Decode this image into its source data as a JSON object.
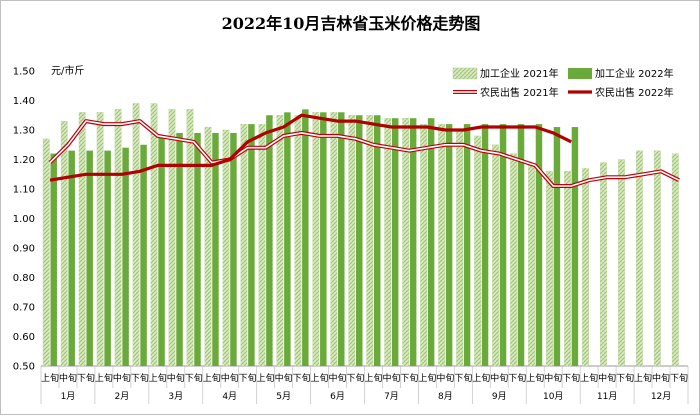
{
  "chart_data": {
    "type": "bar+line",
    "title": "2022年10月吉林省玉米价格走势图",
    "ylabel": "元/市斤",
    "ylim": [
      0.5,
      1.5
    ],
    "ytick_step": 0.1,
    "yticks": [
      "0.50",
      "0.60",
      "0.70",
      "0.80",
      "0.90",
      "1.00",
      "1.10",
      "1.20",
      "1.30",
      "1.40",
      "1.50"
    ],
    "grid": false,
    "legend_position": "top-right",
    "categories": [
      "上旬",
      "中旬",
      "下旬",
      "上旬",
      "中旬",
      "下旬",
      "上旬",
      "中旬",
      "下旬",
      "上旬",
      "中旬",
      "下旬",
      "上旬",
      "中旬",
      "下旬",
      "上旬",
      "中旬",
      "下旬",
      "上旬",
      "中旬",
      "下旬",
      "上旬",
      "中旬",
      "下旬",
      "上旬",
      "中旬",
      "下旬",
      "上旬",
      "中旬",
      "下旬",
      "上旬",
      "中旬",
      "下旬",
      "上旬",
      "中旬",
      "下旬"
    ],
    "months": [
      "1月",
      "2月",
      "3月",
      "4月",
      "5月",
      "6月",
      "7月",
      "8月",
      "9月",
      "10月",
      "11月",
      "12月"
    ],
    "series": [
      {
        "name": "加工企业 2021年",
        "kind": "bar",
        "color": "#9bc46a",
        "pattern": "hatched",
        "values": [
          1.27,
          1.33,
          1.36,
          1.36,
          1.37,
          1.39,
          1.39,
          1.37,
          1.37,
          1.31,
          1.3,
          1.32,
          1.32,
          1.35,
          1.35,
          1.36,
          1.36,
          1.35,
          1.35,
          1.34,
          1.34,
          1.32,
          1.32,
          1.3,
          1.28,
          1.25,
          1.22,
          1.18,
          1.16,
          1.16,
          1.17,
          1.19,
          1.2,
          1.23,
          1.23,
          1.22
        ]
      },
      {
        "name": "加工企业 2022年",
        "kind": "bar",
        "color": "#6aaa3a",
        "pattern": "solid",
        "values": [
          1.22,
          1.23,
          1.23,
          1.23,
          1.24,
          1.25,
          1.28,
          1.29,
          1.29,
          1.29,
          1.29,
          1.32,
          1.35,
          1.36,
          1.37,
          1.36,
          1.36,
          1.35,
          1.35,
          1.34,
          1.34,
          1.34,
          1.32,
          1.32,
          1.32,
          1.32,
          1.32,
          1.32,
          1.31,
          1.31,
          null,
          null,
          null,
          null,
          null,
          null
        ]
      },
      {
        "name": "农民出售 2021年",
        "kind": "line",
        "color": "#c0000c",
        "style": "double",
        "values": [
          1.19,
          1.25,
          1.33,
          1.32,
          1.32,
          1.33,
          1.28,
          1.27,
          1.26,
          1.19,
          1.2,
          1.24,
          1.24,
          1.28,
          1.29,
          1.28,
          1.28,
          1.27,
          1.25,
          1.24,
          1.23,
          1.24,
          1.25,
          1.25,
          1.23,
          1.22,
          1.2,
          1.18,
          1.11,
          1.11,
          1.13,
          1.14,
          1.14,
          1.15,
          1.16,
          1.13
        ]
      },
      {
        "name": "农民出售 2022年",
        "kind": "line",
        "color": "#b00000",
        "style": "thick",
        "values": [
          1.13,
          1.14,
          1.15,
          1.15,
          1.15,
          1.16,
          1.18,
          1.18,
          1.18,
          1.18,
          1.2,
          1.26,
          1.29,
          1.31,
          1.35,
          1.34,
          1.33,
          1.33,
          1.32,
          1.31,
          1.31,
          1.31,
          1.3,
          1.3,
          1.31,
          1.31,
          1.31,
          1.31,
          1.29,
          1.26,
          null,
          null,
          null,
          null,
          null,
          null
        ]
      }
    ]
  }
}
